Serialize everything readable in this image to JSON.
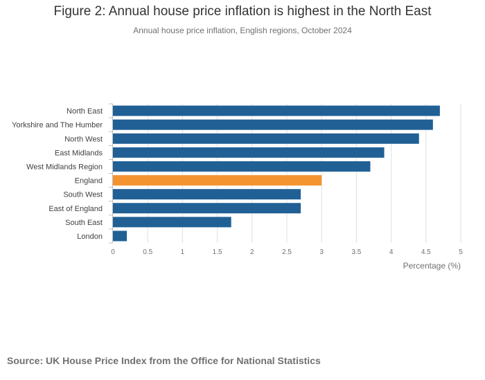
{
  "title": "Figure 2: Annual house price inflation is highest in the North East",
  "subtitle": "Annual house price inflation, English regions, October 2024",
  "source": "Source: UK House Price Index from the Office for National Statistics",
  "colors": {
    "bar": "#206095",
    "highlight": "#F39431",
    "grid": "#e0e0e0",
    "axis": "#bcbcbc",
    "label": "#414042"
  },
  "chart_data": {
    "type": "bar",
    "orientation": "horizontal",
    "categories": [
      "North East",
      "Yorkshire and The Humber",
      "North West",
      "East Midlands",
      "West Midlands Region",
      "England",
      "South West",
      "East of England",
      "South East",
      "London"
    ],
    "values": [
      4.7,
      4.6,
      4.4,
      3.9,
      3.7,
      3.0,
      2.7,
      2.7,
      1.7,
      0.2
    ],
    "highlight": "England",
    "xlabel": "Percentage (%)",
    "ylabel": "",
    "xlim": [
      0,
      5
    ],
    "xticks": [
      "0",
      "0.5",
      "1",
      "1.5",
      "2",
      "2.5",
      "3",
      "3.5",
      "4",
      "4.5",
      "5"
    ],
    "grid": true
  }
}
